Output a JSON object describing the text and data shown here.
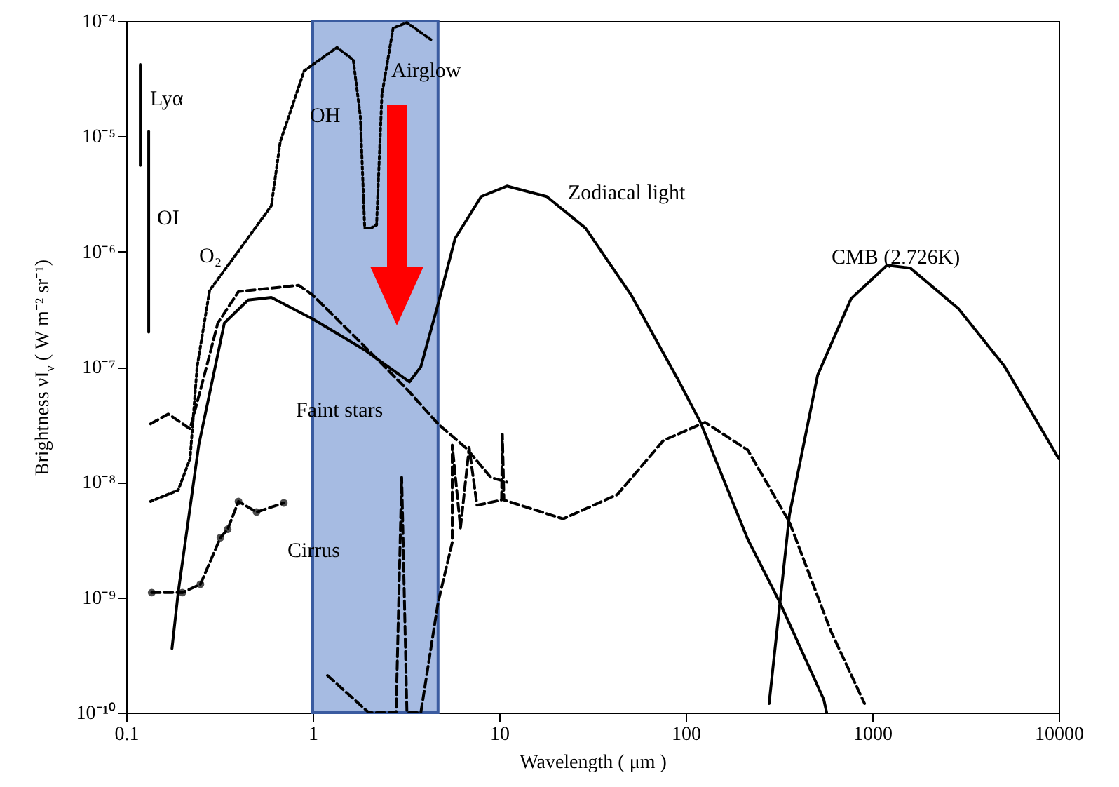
{
  "chart_data": {
    "type": "line",
    "xlabel": "Wavelength ( μm )",
    "ylabel": "Brightness νI$_{ν}$ ( W m⁻² sr⁻¹)",
    "log": "xy",
    "grid": false,
    "xlim": [
      0.1,
      10000
    ],
    "xticks": [
      0.1,
      1,
      10,
      100,
      1000,
      10000
    ],
    "ylim": [
      1e-10,
      0.0001
    ],
    "yticks": [
      {
        "value": 1e-10,
        "label": "10⁻¹⁰"
      },
      {
        "value": 1e-09,
        "label": "10⁻⁹"
      },
      {
        "value": 1e-08,
        "label": "10⁻⁸"
      },
      {
        "value": 1e-07,
        "label": "10⁻⁷"
      },
      {
        "value": 1e-06,
        "label": "10⁻⁶"
      },
      {
        "value": 1e-05,
        "label": "10⁻⁵"
      },
      {
        "value": 0.0001,
        "label": "10⁻⁴"
      }
    ],
    "bands": [
      {
        "axis": "x",
        "from": 1.0,
        "to": 4.7,
        "color": "#a6bbe2"
      }
    ],
    "series": [
      {
        "color": "#000000",
        "line_style": "solid",
        "x": [
          0.176,
          0.19,
          0.245,
          0.3,
          0.336,
          0.45,
          0.6,
          1.0,
          1.9,
          3.3,
          3.8,
          4.7,
          5.8,
          8,
          11,
          18,
          29,
          51,
          90,
          120,
          215,
          320,
          550,
          570
        ],
        "values": [
          3.6e-10,
          1.1e-09,
          2.1e-08,
          1e-07,
          2.4e-07,
          3.8e-07,
          4e-07,
          2.6e-07,
          1.4e-07,
          7.4e-08,
          1e-07,
          3.5e-07,
          1.3e-06,
          3e-06,
          3.7e-06,
          3e-06,
          1.6e-06,
          4.2e-07,
          8e-08,
          3.3e-08,
          3.2e-09,
          9e-10,
          1.3e-10,
          1e-10
        ]
      },
      {
        "color": "#000000",
        "line_style": "dashed",
        "x": [
          0.135,
          0.168,
          0.22,
          0.26,
          0.31,
          0.4,
          0.84,
          1.0,
          1.9,
          3.2,
          4.7,
          6.7,
          9,
          11
        ],
        "values": [
          3.2e-08,
          3.9e-08,
          2.9e-08,
          8e-08,
          2.4e-07,
          4.5e-07,
          5.1e-07,
          4.2e-07,
          1.5e-07,
          6.4e-08,
          3.2e-08,
          1.95e-08,
          1.1e-08,
          1e-08
        ]
      },
      {
        "color": "#000000",
        "line_style": "dotted",
        "x": [
          0.135,
          0.19,
          0.22,
          0.24,
          0.28,
          0.38,
          0.6,
          0.67,
          0.9,
          1.35,
          1.65,
          1.8,
          1.9,
          2.05,
          2.2,
          2.35,
          2.7,
          3.2,
          4.3
        ],
        "values": [
          6.8e-09,
          8.5e-09,
          1.6e-08,
          1e-07,
          4.6e-07,
          9e-07,
          2.5e-06,
          9e-06,
          3.7e-05,
          5.9e-05,
          4.6e-05,
          1.5e-05,
          1.6e-06,
          1.6e-06,
          1.7e-06,
          2.3e-05,
          8.7e-05,
          9.7e-05,
          6.9e-05
        ]
      },
      {
        "color": "#000000",
        "line_style": "dashed",
        "marker": "circle",
        "x": [
          0.137,
          0.2,
          0.25,
          0.32,
          0.35,
          0.4,
          0.5,
          0.7
        ],
        "values": [
          1.1e-09,
          1.1e-09,
          1.3e-09,
          3.3e-09,
          3.9e-09,
          6.8e-09,
          5.5e-09,
          6.6e-09
        ]
      },
      {
        "color": "#000000",
        "line_style": "dashed",
        "x": [
          1.2,
          2.0,
          2.8,
          3.0,
          3.2,
          3.8,
          4.7,
          5.6,
          5.6,
          6.2,
          6.9,
          7.6,
          10.3,
          10.4,
          10.6,
          22,
          43,
          76,
          127,
          215,
          360,
          600,
          910
        ],
        "values": [
          2.1e-10,
          1e-10,
          1e-10,
          1.1e-08,
          1e-10,
          1e-10,
          9e-10,
          3e-09,
          2.1e-08,
          4e-09,
          2e-08,
          6.3e-09,
          7e-09,
          2.6e-08,
          7e-09,
          4.8e-09,
          7.8e-09,
          2.3e-08,
          3.3e-08,
          1.9e-08,
          4.5e-09,
          5.1e-10,
          1.2e-10
        ]
      },
      {
        "color": "#000000",
        "line_style": "solid",
        "x": [
          280,
          360,
          510,
          770,
          1200,
          1600,
          2900,
          5100,
          10000
        ],
        "values": [
          1.2e-10,
          5.2e-09,
          8.5e-08,
          3.9e-07,
          7.6e-07,
          7.2e-07,
          3.2e-07,
          1.02e-07,
          1.6e-08
        ]
      },
      {
        "color": "#000000",
        "line_style": "solid",
        "x": [
          0.119,
          0.119
        ],
        "values": [
          4.2e-05,
          5.6e-06
        ]
      },
      {
        "color": "#000000",
        "line_style": "solid",
        "x": [
          0.132,
          0.132
        ],
        "values": [
          1.1e-05,
          2e-07
        ]
      }
    ],
    "annotations": [
      "Zodiacal light",
      "CMB (2.726K)",
      "Airglow",
      "OH",
      "Faint stars",
      "Cirrus",
      "O₂",
      "Lyα",
      "OI"
    ]
  }
}
